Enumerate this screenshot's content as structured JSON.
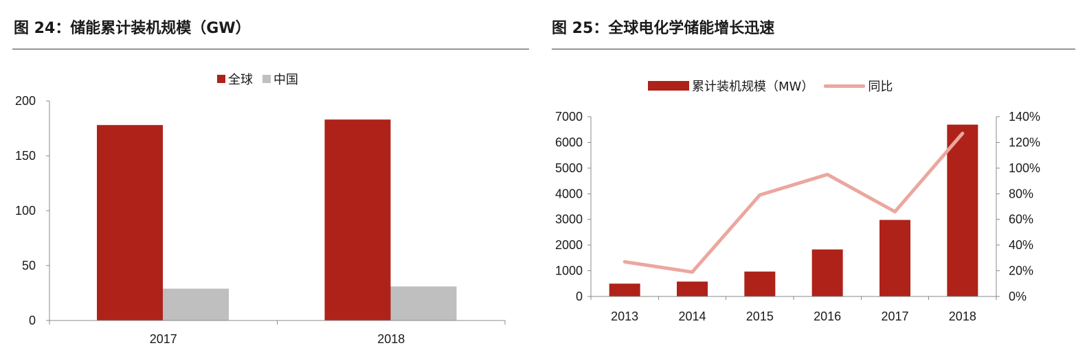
{
  "chart_data": [
    {
      "type": "bar",
      "title": "图 24：储能累计装机规模（GW）",
      "categories": [
        "2017",
        "2018"
      ],
      "series": [
        {
          "name": "全球",
          "values": [
            178,
            183
          ],
          "color": "#AE2219"
        },
        {
          "name": "中国",
          "values": [
            29,
            31
          ],
          "color": "#BFBFBF"
        }
      ],
      "ylim": [
        0,
        200
      ],
      "yticks": [
        "0",
        "50",
        "100",
        "150",
        "200"
      ],
      "grid": false,
      "legend": "top"
    },
    {
      "type": "bar",
      "title": "图 25：全球电化学储能增长迅速",
      "categories": [
        "2013",
        "2014",
        "2015",
        "2016",
        "2017",
        "2018"
      ],
      "series": [
        {
          "name": "累计装机规模（MW）",
          "type": "bar",
          "axis": "left",
          "values": [
            500,
            580,
            970,
            1830,
            2980,
            6690
          ],
          "color": "#AE2219"
        },
        {
          "name": "同比",
          "type": "line",
          "axis": "right",
          "values": [
            27,
            19,
            79,
            95,
            66,
            127
          ],
          "color": "#EBA79E"
        }
      ],
      "ylim": [
        0,
        7000
      ],
      "yticks": [
        "0",
        "1000",
        "2000",
        "3000",
        "4000",
        "5000",
        "6000",
        "7000"
      ],
      "y2lim": [
        0,
        140
      ],
      "y2ticks": [
        "0%",
        "20%",
        "40%",
        "60%",
        "80%",
        "100%",
        "120%",
        "140%"
      ],
      "grid": false,
      "legend": "top"
    }
  ]
}
